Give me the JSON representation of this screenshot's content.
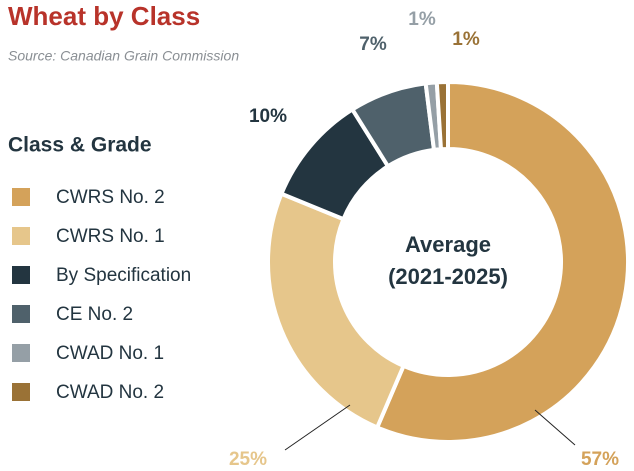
{
  "chart_data": {
    "type": "donut",
    "title": "Wheat by Class",
    "subtitle": "Source: Canadian Grain Commission",
    "legend_title": "Class & Grade",
    "center_label": [
      "Average",
      "(2021-2025)"
    ],
    "categories": [
      "CWRS No. 2",
      "CWRS No. 1",
      "By Specification",
      "CE No. 2",
      "CWAD No. 1",
      "CWAD No. 2"
    ],
    "values": [
      57,
      25,
      10,
      7,
      1,
      1
    ],
    "value_labels": [
      "57%",
      "25%",
      "10%",
      "7%",
      "1%",
      "1%"
    ],
    "colors": [
      "#d4a25a",
      "#e6c68b",
      "#233540",
      "#4f616b",
      "#959fa6",
      "#9a7236"
    ]
  }
}
